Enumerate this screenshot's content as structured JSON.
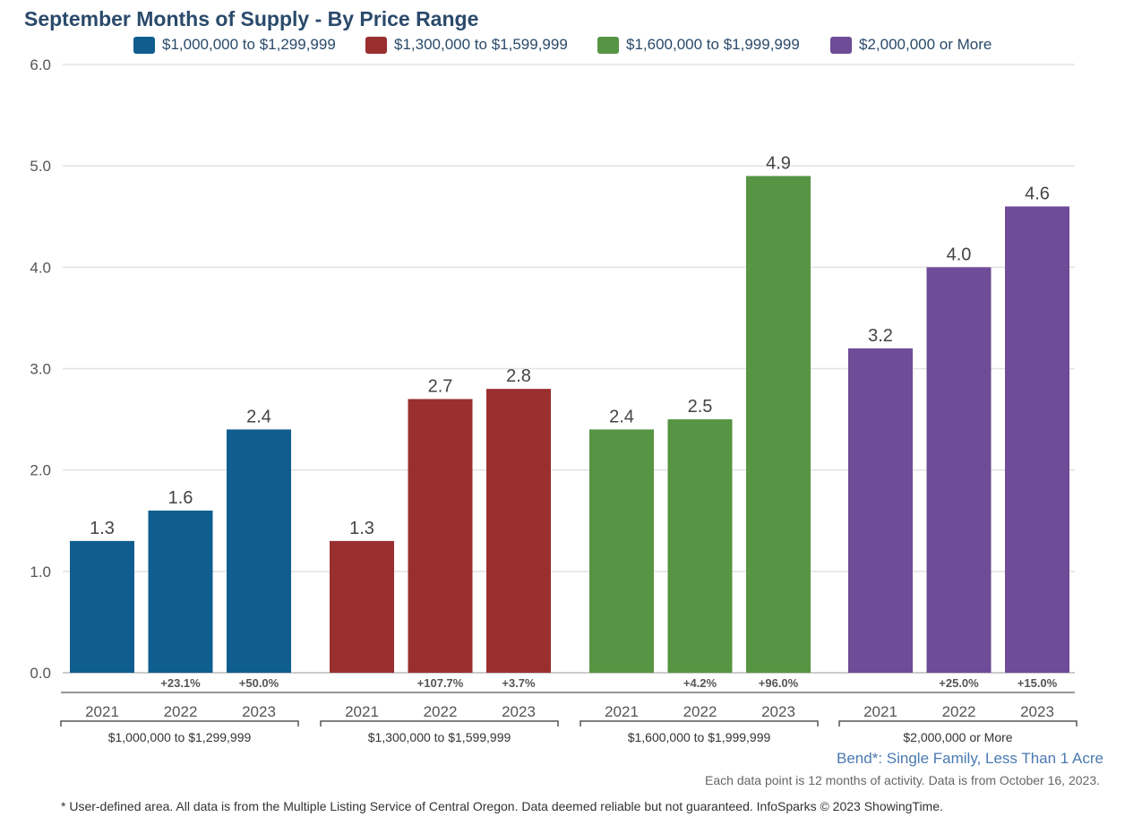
{
  "title": "September Months of Supply - By Price Range",
  "colors": {
    "blue": "#0f5e8f",
    "red": "#9a2f2f",
    "green": "#579444",
    "purple": "#6e4c97"
  },
  "legend": [
    {
      "label": "$1,000,000 to $1,299,999",
      "color": "#0f5e8f"
    },
    {
      "label": "$1,300,000 to $1,599,999",
      "color": "#9a2f2f"
    },
    {
      "label": "$1,600,000 to $1,999,999",
      "color": "#579444"
    },
    {
      "label": "$2,000,000 or More",
      "color": "#6e4c97"
    }
  ],
  "chart_data": {
    "type": "bar",
    "title": "September Months of Supply - By Price Range",
    "ylim": [
      0,
      6
    ],
    "yticks": [
      "0.0",
      "1.0",
      "2.0",
      "3.0",
      "4.0",
      "5.0",
      "6.0"
    ],
    "grid": true,
    "legend_position": "top",
    "categories": [
      "2021",
      "2022",
      "2023"
    ],
    "groups": [
      {
        "name": "$1,000,000 to $1,299,999",
        "color": "#0f5e8f",
        "values": [
          1.3,
          1.6,
          2.4
        ],
        "labels": [
          "1.3",
          "1.6",
          "2.4"
        ],
        "changes": [
          "",
          "+23.1%",
          "+50.0%"
        ]
      },
      {
        "name": "$1,300,000 to $1,599,999",
        "color": "#9a2f2f",
        "values": [
          1.3,
          2.7,
          2.8
        ],
        "labels": [
          "1.3",
          "2.7",
          "2.8"
        ],
        "changes": [
          "",
          "+107.7%",
          "+3.7%"
        ]
      },
      {
        "name": "$1,600,000 to $1,999,999",
        "color": "#579444",
        "values": [
          2.4,
          2.5,
          4.9
        ],
        "labels": [
          "2.4",
          "2.5",
          "4.9"
        ],
        "changes": [
          "",
          "+4.2%",
          "+96.0%"
        ]
      },
      {
        "name": "$2,000,000 or More",
        "color": "#6e4c97",
        "values": [
          3.2,
          4.0,
          4.6
        ],
        "labels": [
          "3.2",
          "4.0",
          "4.6"
        ],
        "changes": [
          "",
          "+25.0%",
          "+15.0%"
        ]
      }
    ]
  },
  "footer": {
    "area": "Bend*: Single Family, Less Than 1 Acre",
    "note": "Each data point is 12 months of activity. Data is from October 16, 2023.",
    "disclaimer": "* User-defined area. All data is from the Multiple Listing Service of Central Oregon. Data deemed reliable but not guaranteed. InfoSparks © 2023 ShowingTime."
  }
}
